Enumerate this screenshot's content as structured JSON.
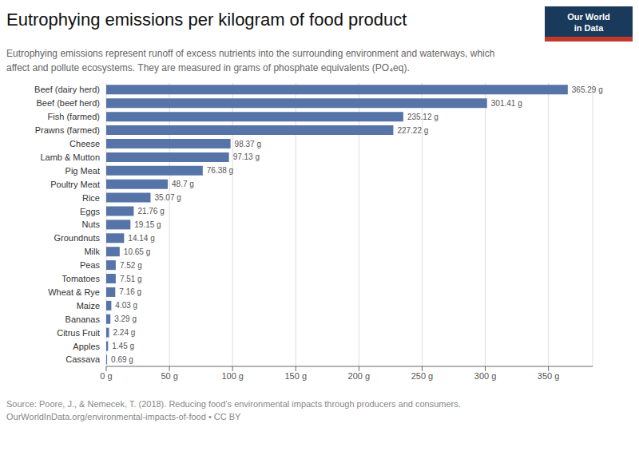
{
  "chart_data": {
    "type": "bar",
    "orientation": "horizontal",
    "title": "Eutrophying emissions per kilogram of food product",
    "subtitle": "Eutrophying emissions represent runoff of excess nutrients into the surrounding environment and waterways, which\naffect and pollute ecosystems. They are measured in grams of phosphate equivalents (PO₄eq).",
    "annotations": [
      "Our World",
      "in Data",
      "Source: Poore, J., & Nemecek, T. (2018). Reducing food’s environmental impacts through producers and consumers.\nOurWorldInData.org/environmental-impacts-of-food • CC BY"
    ],
    "categories": [
      "Beef (dairy herd)",
      "Beef (beef herd)",
      "Fish (farmed)",
      "Prawns (farmed)",
      "Cheese",
      "Lamb & Mutton",
      "Pig Meat",
      "Poultry Meat",
      "Rice",
      "Eggs",
      "Nuts",
      "Groundnuts",
      "Milk",
      "Peas",
      "Tomatoes",
      "Wheat & Rye",
      "Maize",
      "Bananas",
      "Citrus Fruit",
      "Apples",
      "Cassava"
    ],
    "values": [
      365.29,
      301.41,
      235.12,
      227.22,
      98.37,
      97.13,
      76.38,
      48.7,
      35.07,
      21.76,
      19.15,
      14.14,
      10.65,
      7.52,
      7.51,
      7.16,
      4.03,
      3.29,
      2.24,
      1.45,
      0.69
    ],
    "value_labels": [
      "365.29 g",
      "301.41 g",
      "235.12 g",
      "227.22 g",
      "98.37 g",
      "97.13 g",
      "76.38 g",
      "48.7 g",
      "35.07 g",
      "21.76 g",
      "19.15 g",
      "14.14 g",
      "10.65 g",
      "7.52 g",
      "7.51 g",
      "7.16 g",
      "4.03 g",
      "3.29 g",
      "2.24 g",
      "1.45 g",
      "0.69 g"
    ],
    "data_labels": true,
    "color": "#5674a8",
    "xlim": [
      0,
      385
    ],
    "xticks": [
      {
        "value": 0,
        "label": "0 g"
      },
      {
        "value": 50,
        "label": "50 g"
      },
      {
        "value": 100,
        "label": "100 g"
      },
      {
        "value": 150,
        "label": "150 g"
      },
      {
        "value": 200,
        "label": "200 g"
      },
      {
        "value": 250,
        "label": "250 g"
      },
      {
        "value": 300,
        "label": "300 g"
      },
      {
        "value": 350,
        "label": "350 g"
      }
    ],
    "grid": true
  }
}
